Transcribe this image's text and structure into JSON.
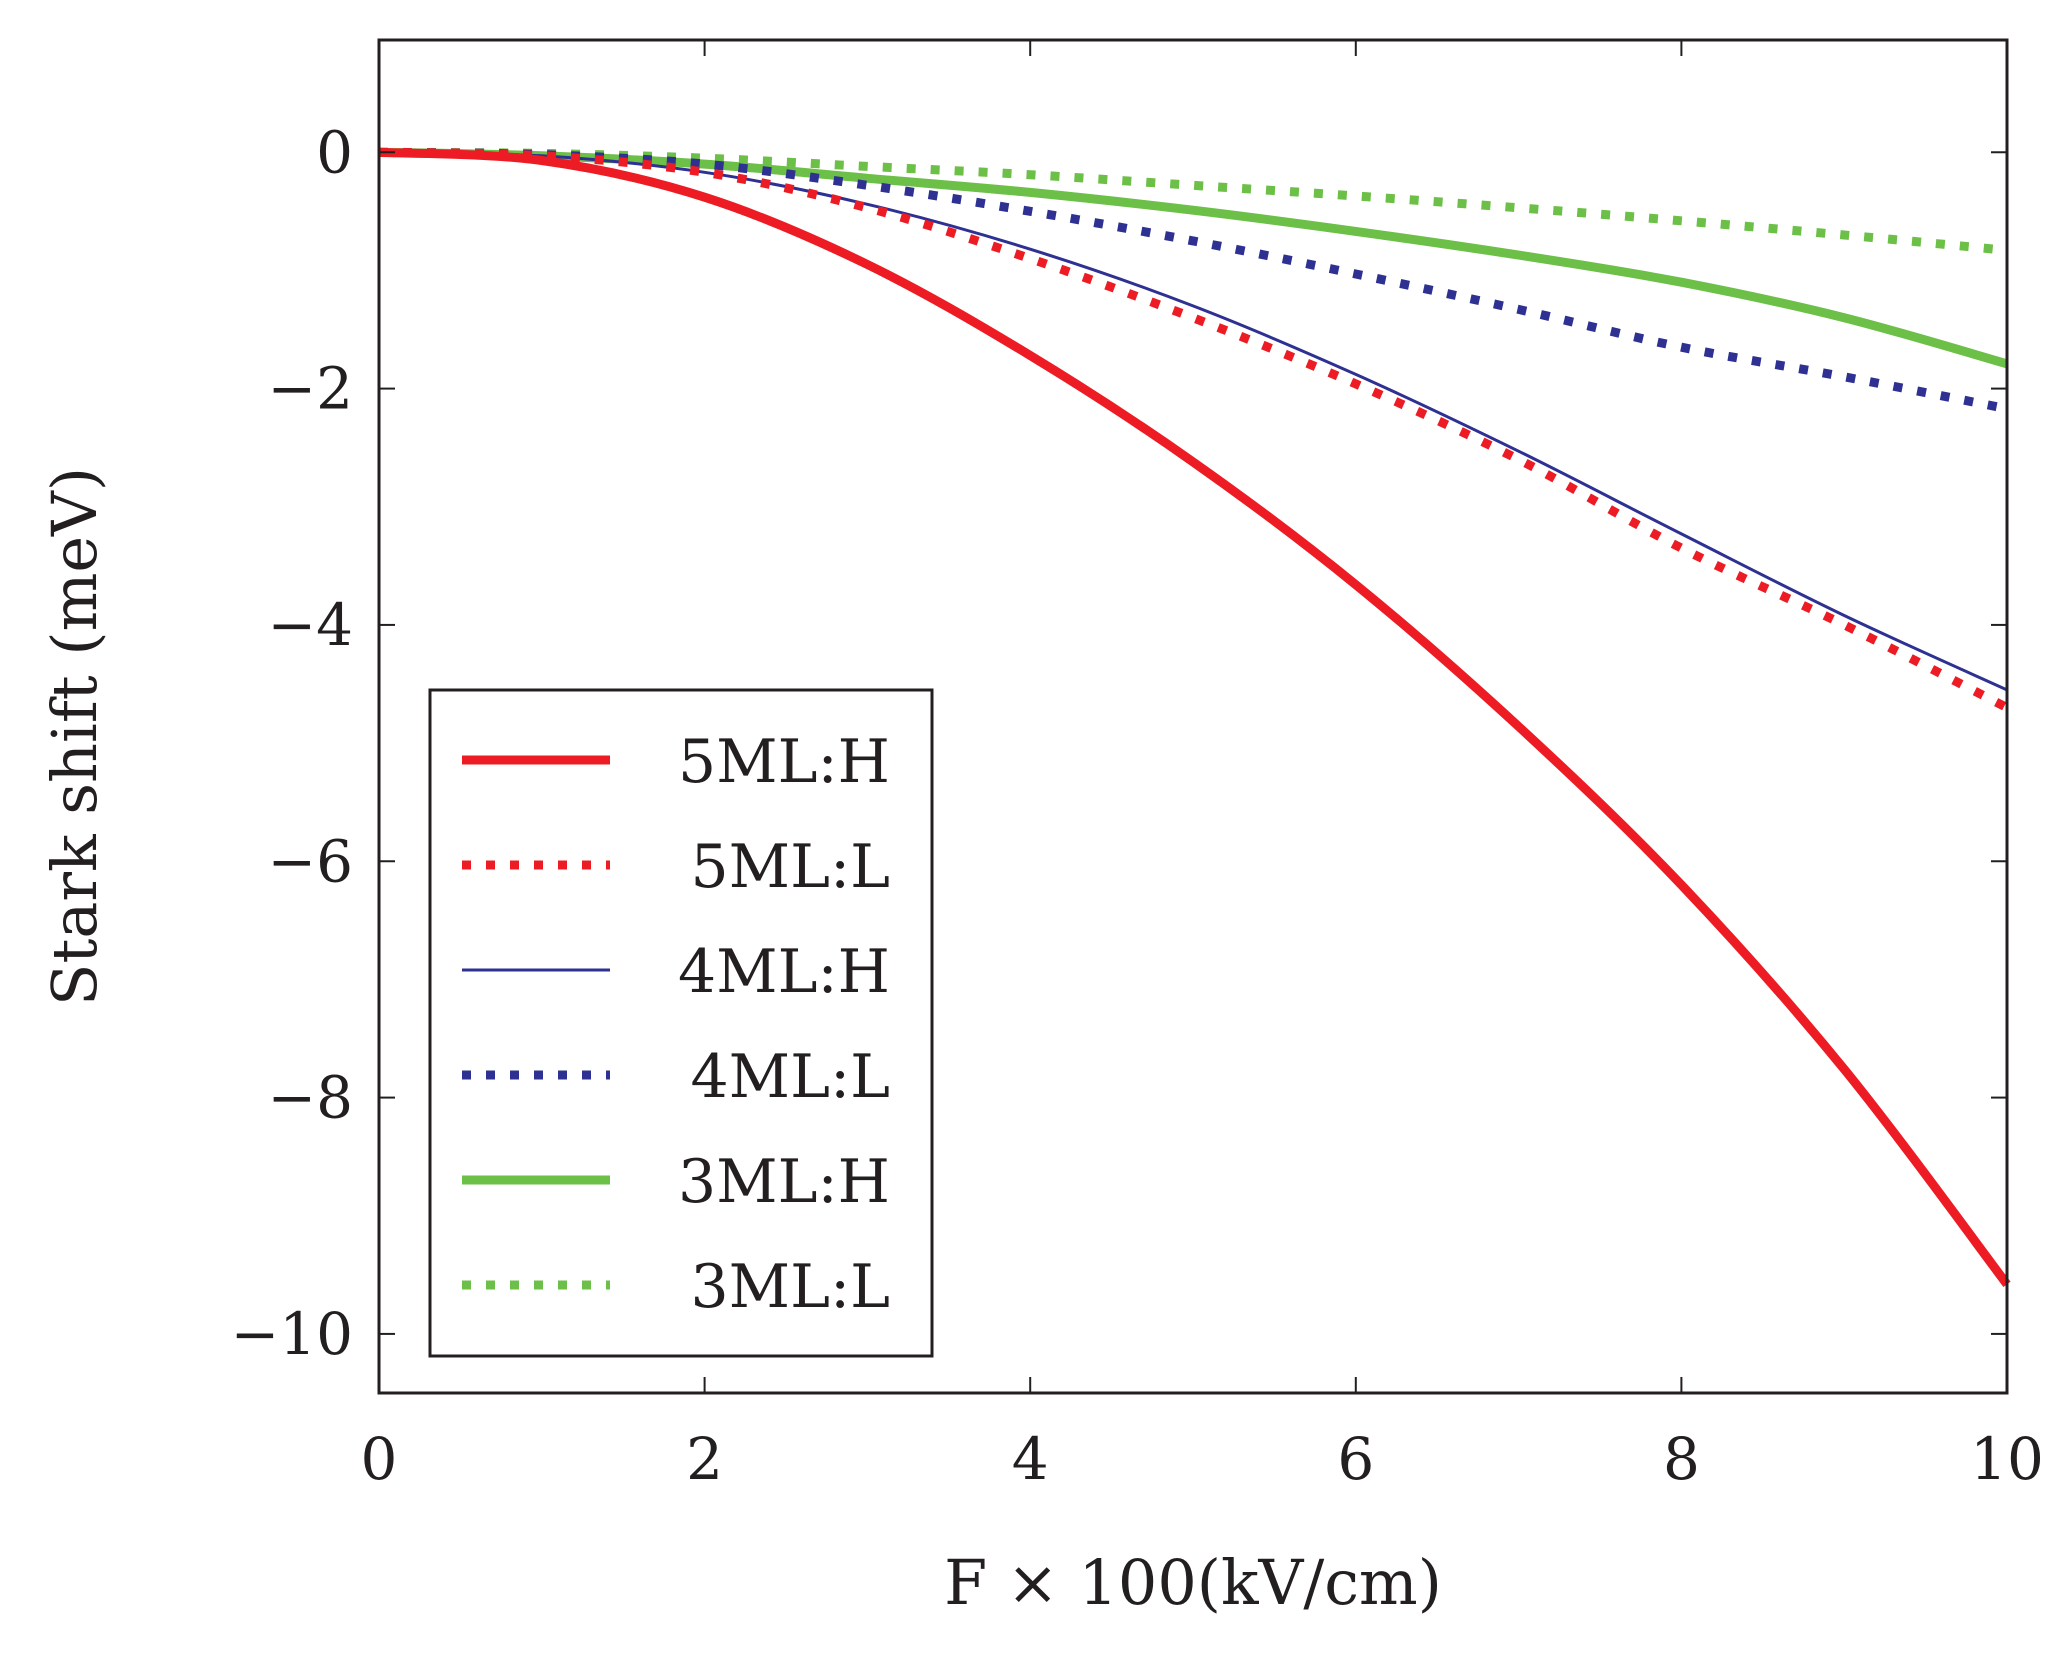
{
  "chart_data": {
    "type": "line",
    "xlabel": "F × 100(kV/cm)",
    "ylabel": "Stark shift (meV)",
    "xlim": [
      0,
      10
    ],
    "ylim": [
      -10.5,
      0.95
    ],
    "xticks": [
      0,
      2,
      4,
      6,
      8,
      10
    ],
    "xtick_labels": [
      "0",
      "2",
      "4",
      "6",
      "8",
      "10"
    ],
    "yticks": [
      0,
      -2,
      -4,
      -6,
      -8,
      -10
    ],
    "ytick_labels": [
      "0",
      "−2",
      "−4",
      "−6",
      "−8",
      "−10"
    ],
    "legend_position": "bottom-left",
    "grid": false,
    "x": [
      0,
      1,
      2,
      3,
      4,
      5,
      6,
      7,
      8,
      9,
      10
    ],
    "series": [
      {
        "name": "5ML:H",
        "color": "#ed1c24",
        "style": "solid-thick",
        "values": [
          0,
          -0.07,
          -0.38,
          -0.95,
          -1.72,
          -2.62,
          -3.66,
          -4.86,
          -6.2,
          -7.76,
          -9.58
        ]
      },
      {
        "name": "5ML:L",
        "color": "#ed1c24",
        "style": "dotted",
        "values": [
          0,
          -0.03,
          -0.17,
          -0.47,
          -0.9,
          -1.4,
          -1.96,
          -2.6,
          -3.35,
          -4.0,
          -4.7
        ]
      },
      {
        "name": "4ML:H",
        "color": "#2e3192",
        "style": "solid-thin",
        "values": [
          0,
          -0.03,
          -0.17,
          -0.44,
          -0.82,
          -1.3,
          -1.88,
          -2.53,
          -3.23,
          -3.92,
          -4.55
        ]
      },
      {
        "name": "4ML:L",
        "color": "#2e3192",
        "style": "dotted",
        "values": [
          0,
          -0.02,
          -0.1,
          -0.28,
          -0.5,
          -0.75,
          -1.03,
          -1.33,
          -1.65,
          -1.9,
          -2.17
        ]
      },
      {
        "name": "3ML:H",
        "color": "#6cbf47",
        "style": "solid-thick",
        "values": [
          0,
          -0.03,
          -0.1,
          -0.22,
          -0.34,
          -0.49,
          -0.67,
          -0.87,
          -1.1,
          -1.4,
          -1.79
        ]
      },
      {
        "name": "3ML:L",
        "color": "#6cbf47",
        "style": "dotted",
        "values": [
          0,
          -0.01,
          -0.05,
          -0.12,
          -0.19,
          -0.28,
          -0.37,
          -0.47,
          -0.58,
          -0.7,
          -0.83
        ]
      }
    ]
  }
}
